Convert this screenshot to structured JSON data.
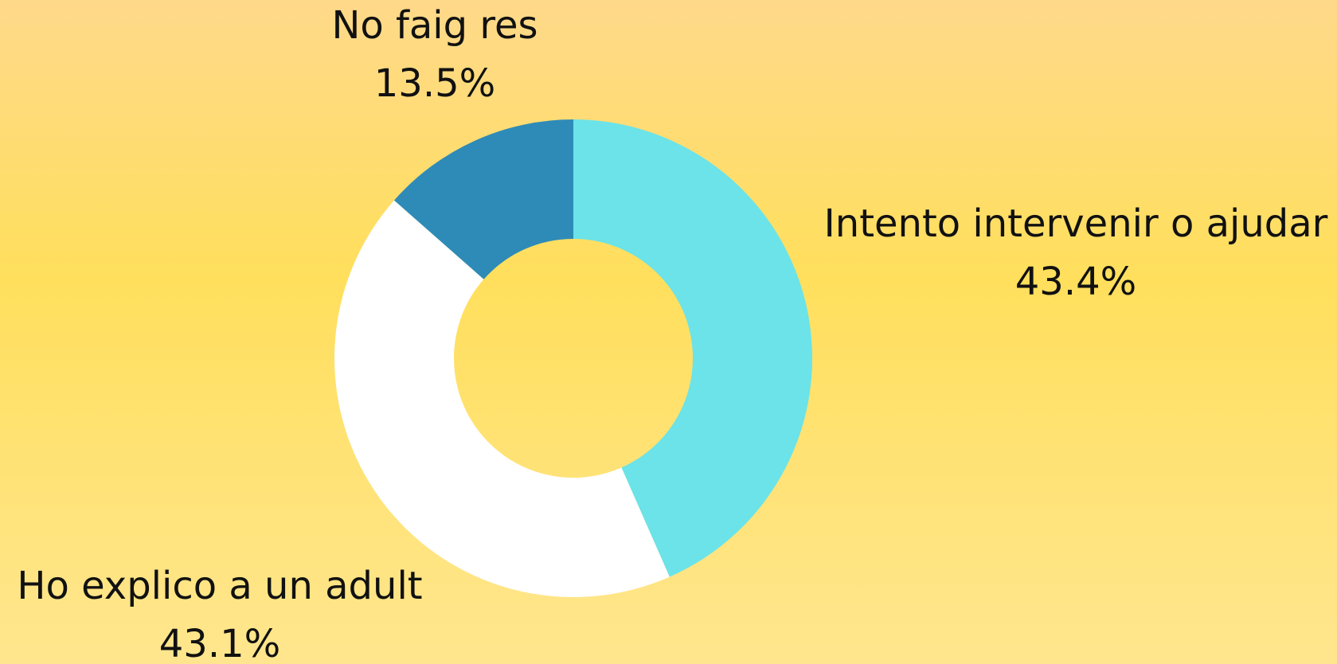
{
  "chart_data": {
    "type": "donut",
    "categories": [
      "Intento intervenir o ajudar",
      "Ho explico a un adult",
      "No faig res"
    ],
    "values": [
      43.4,
      43.1,
      13.5
    ],
    "value_labels": [
      "43.4%",
      "43.1%",
      "13.5%"
    ],
    "colors": [
      "#6be3e8",
      "#ffffff",
      "#2e8bb8"
    ]
  }
}
